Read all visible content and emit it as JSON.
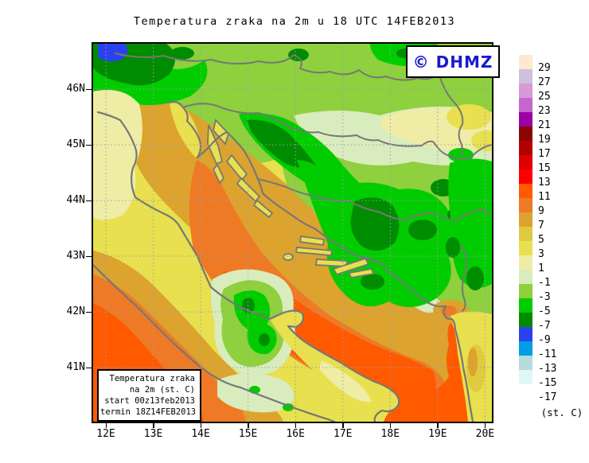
{
  "title": "Temperatura zraka na 2m u 18 UTC 14FEB2013",
  "watermark": {
    "label": "© DHMZ",
    "color": "#1a1acd"
  },
  "axes": {
    "lat_labels": [
      "46N",
      "45N",
      "44N",
      "43N",
      "42N",
      "41N"
    ],
    "lon_labels": [
      "12E",
      "13E",
      "14E",
      "15E",
      "16E",
      "17E",
      "18E",
      "19E",
      "20E"
    ]
  },
  "colorbar": {
    "unit_label": "(st. C)",
    "cells": [
      {
        "label": "29",
        "color": "#fde8d0"
      },
      {
        "label": "27",
        "color": "#cdc1db"
      },
      {
        "label": "25",
        "color": "#d69ad6"
      },
      {
        "label": "23",
        "color": "#c765ce"
      },
      {
        "label": "21",
        "color": "#9c00a4"
      },
      {
        "label": "19",
        "color": "#8c0404"
      },
      {
        "label": "17",
        "color": "#b40000"
      },
      {
        "label": "15",
        "color": "#e00000"
      },
      {
        "label": "13",
        "color": "#fc0000"
      },
      {
        "label": "11",
        "color": "#ff5a00"
      },
      {
        "label": "9",
        "color": "#ee7a26"
      },
      {
        "label": "7",
        "color": "#dca32e"
      },
      {
        "label": "5",
        "color": "#dfcb3f"
      },
      {
        "label": "3",
        "color": "#e8e04e"
      },
      {
        "label": "1",
        "color": "#efeca6"
      },
      {
        "label": "-1",
        "color": "#d9ecbd"
      },
      {
        "label": "-3",
        "color": "#8ed03e"
      },
      {
        "label": "-5",
        "color": "#00cc00"
      },
      {
        "label": "-7",
        "color": "#008c00"
      },
      {
        "label": "-9",
        "color": "#2a42ee"
      },
      {
        "label": "-11",
        "color": "#009ee4"
      },
      {
        "label": "-13",
        "color": "#b4dcdc"
      },
      {
        "label": "-15",
        "color": "#e2f6f8"
      },
      {
        "label": "-17",
        "color": "#ffffff"
      }
    ]
  },
  "inset_legend": {
    "lines": [
      "Temperatura zraka",
      "na 2m (st. C)",
      "start 00z13feb2013",
      "termin 18Z14FEB2013"
    ]
  },
  "map": {
    "frame_color": "#000000",
    "coast_color": "#777777",
    "grid_color": "#9aa0a8"
  }
}
